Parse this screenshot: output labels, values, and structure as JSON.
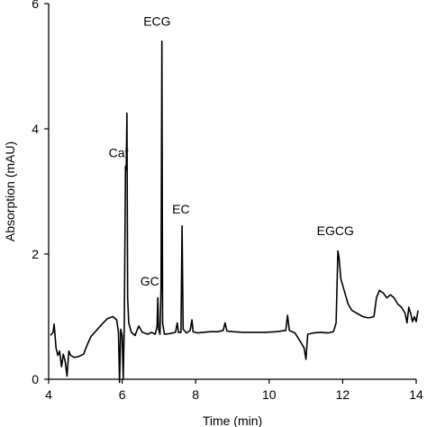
{
  "chart_data": {
    "type": "line",
    "xlabel": "Time (min)",
    "ylabel": "Absorption (mAU)",
    "xlim": [
      4,
      14
    ],
    "ylim": [
      0,
      6
    ],
    "xticks": [
      4,
      6,
      8,
      10,
      12,
      14
    ],
    "yticks": [
      0,
      2,
      4,
      6
    ],
    "x_tick_labels": [
      "4",
      "6",
      "8",
      "10",
      "12",
      "14"
    ],
    "y_tick_labels": [
      "0",
      "2",
      "4",
      "6"
    ],
    "grid": false,
    "series": [
      {
        "color": "#000000",
        "points": [
          [
            4.05,
            0.7
          ],
          [
            4.12,
            0.75
          ],
          [
            4.15,
            0.88
          ],
          [
            4.2,
            0.5
          ],
          [
            4.25,
            0.38
          ],
          [
            4.3,
            0.45
          ],
          [
            4.35,
            0.2
          ],
          [
            4.4,
            0.4
          ],
          [
            4.45,
            0.28
          ],
          [
            4.5,
            0.05
          ],
          [
            4.55,
            0.45
          ],
          [
            4.6,
            0.38
          ],
          [
            4.7,
            0.35
          ],
          [
            4.8,
            0.36
          ],
          [
            4.95,
            0.4
          ],
          [
            5.05,
            0.55
          ],
          [
            5.15,
            0.68
          ],
          [
            5.3,
            0.78
          ],
          [
            5.45,
            0.88
          ],
          [
            5.6,
            0.97
          ],
          [
            5.75,
            1.0
          ],
          [
            5.85,
            0.95
          ],
          [
            5.9,
            0.75
          ],
          [
            5.93,
            -0.05
          ],
          [
            5.96,
            0.8
          ],
          [
            6.0,
            0.7
          ],
          [
            6.03,
            0.0
          ],
          [
            6.06,
            0.9
          ],
          [
            6.09,
            3.4
          ],
          [
            6.11,
            3.35
          ],
          [
            6.13,
            4.25
          ],
          [
            6.15,
            1.3
          ],
          [
            6.18,
            0.9
          ],
          [
            6.25,
            0.75
          ],
          [
            6.35,
            0.7
          ],
          [
            6.45,
            0.85
          ],
          [
            6.55,
            0.75
          ],
          [
            6.7,
            0.72
          ],
          [
            6.8,
            0.75
          ],
          [
            6.9,
            0.72
          ],
          [
            6.95,
            0.85
          ],
          [
            6.97,
            1.3
          ],
          [
            6.99,
            0.8
          ],
          [
            7.03,
            0.72
          ],
          [
            7.06,
            1.5
          ],
          [
            7.08,
            5.4
          ],
          [
            7.1,
            0.9
          ],
          [
            7.15,
            0.72
          ],
          [
            7.3,
            0.73
          ],
          [
            7.45,
            0.75
          ],
          [
            7.5,
            0.9
          ],
          [
            7.53,
            0.75
          ],
          [
            7.6,
            0.75
          ],
          [
            7.63,
            2.45
          ],
          [
            7.66,
            0.8
          ],
          [
            7.75,
            0.74
          ],
          [
            7.85,
            0.78
          ],
          [
            7.9,
            0.95
          ],
          [
            7.93,
            0.76
          ],
          [
            8.05,
            0.74
          ],
          [
            8.2,
            0.75
          ],
          [
            8.4,
            0.76
          ],
          [
            8.6,
            0.76
          ],
          [
            8.75,
            0.78
          ],
          [
            8.8,
            0.9
          ],
          [
            8.85,
            0.77
          ],
          [
            9.0,
            0.76
          ],
          [
            9.3,
            0.75
          ],
          [
            9.6,
            0.75
          ],
          [
            9.9,
            0.75
          ],
          [
            10.2,
            0.76
          ],
          [
            10.45,
            0.78
          ],
          [
            10.5,
            1.02
          ],
          [
            10.55,
            0.78
          ],
          [
            10.7,
            0.74
          ],
          [
            10.85,
            0.6
          ],
          [
            10.95,
            0.5
          ],
          [
            11.0,
            0.32
          ],
          [
            11.05,
            0.72
          ],
          [
            11.2,
            0.74
          ],
          [
            11.4,
            0.75
          ],
          [
            11.6,
            0.74
          ],
          [
            11.75,
            0.76
          ],
          [
            11.82,
            0.9
          ],
          [
            11.87,
            2.05
          ],
          [
            11.9,
            1.95
          ],
          [
            11.95,
            1.6
          ],
          [
            12.05,
            1.4
          ],
          [
            12.15,
            1.2
          ],
          [
            12.25,
            1.1
          ],
          [
            12.4,
            1.05
          ],
          [
            12.55,
            1.0
          ],
          [
            12.7,
            0.98
          ],
          [
            12.85,
            1.0
          ],
          [
            12.92,
            1.3
          ],
          [
            13.0,
            1.42
          ],
          [
            13.1,
            1.38
          ],
          [
            13.2,
            1.3
          ],
          [
            13.3,
            1.35
          ],
          [
            13.4,
            1.3
          ],
          [
            13.5,
            1.2
          ],
          [
            13.6,
            1.15
          ],
          [
            13.7,
            1.05
          ],
          [
            13.75,
            0.9
          ],
          [
            13.8,
            1.15
          ],
          [
            13.85,
            1.05
          ],
          [
            13.9,
            0.92
          ],
          [
            13.95,
            1.0
          ],
          [
            14.0,
            0.92
          ],
          [
            14.05,
            1.1
          ]
        ]
      }
    ],
    "annotations": [
      {
        "text": "Caf",
        "x": 5.9,
        "y": 3.55
      },
      {
        "text": "ECG",
        "x": 6.95,
        "y": 5.65
      },
      {
        "text": "GC",
        "x": 6.75,
        "y": 1.5
      },
      {
        "text": "EC",
        "x": 7.6,
        "y": 2.65
      },
      {
        "text": "EGCG",
        "x": 11.8,
        "y": 2.3
      }
    ]
  }
}
